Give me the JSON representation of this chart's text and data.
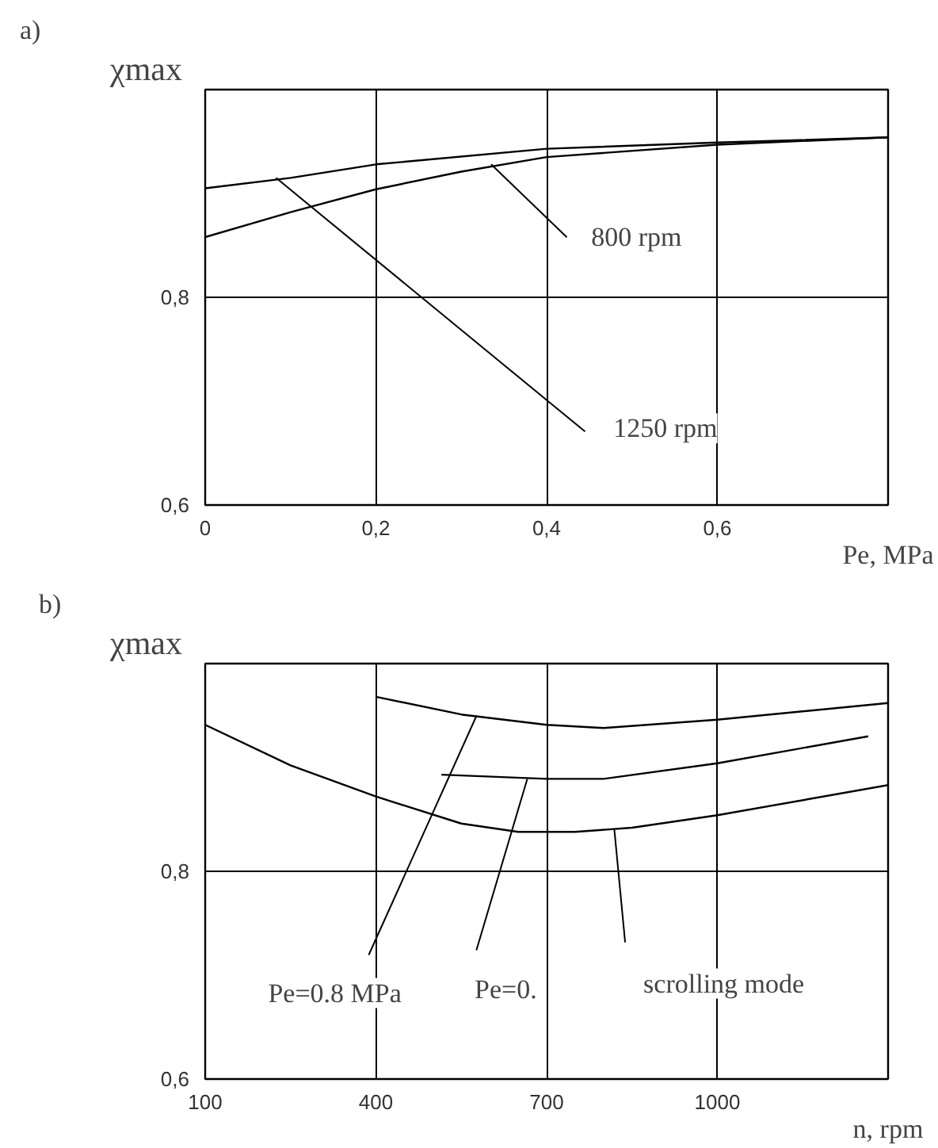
{
  "chart_data": [
    {
      "type": "line",
      "title": "a)",
      "ylabel": "χmax",
      "xlabel": "Pe, MPa",
      "xlim": [
        0,
        0.8
      ],
      "ylim": [
        0.6,
        1.0
      ],
      "xticks": [
        0,
        {
          "value": 0.2,
          "label": "0,2"
        },
        {
          "value": 0.4,
          "label": "0,4"
        },
        {
          "value": 0.6,
          "label": "0,6"
        }
      ],
      "yticks": [
        {
          "value": 0.6,
          "label": "0,6"
        },
        {
          "value": 0.8,
          "label": "0,8"
        },
        {
          "value": 1.0,
          "label": null
        }
      ],
      "grid": true,
      "series": [
        {
          "color": "#000000",
          "x": [
            0,
            0.1,
            0.2,
            0.3,
            0.4,
            0.6,
            0.8
          ],
          "values": [
            0.858,
            0.882,
            0.904,
            0.921,
            0.935,
            0.947,
            0.954
          ]
        },
        {
          "color": "#000000",
          "x": [
            0,
            0.1,
            0.2,
            0.4,
            0.6,
            0.8
          ],
          "values": [
            0.905,
            0.915,
            0.928,
            0.943,
            0.949,
            0.954
          ]
        }
      ],
      "annotations": [
        {
          "text": "800 rpm",
          "x": 0.335,
          "y": 0.928
        },
        {
          "text": "1250 rpm",
          "x": 0.083,
          "y": 0.915
        }
      ]
    },
    {
      "type": "line",
      "title": "b)",
      "ylabel": "χmax",
      "xlabel": "n, rpm",
      "xlim": [
        100,
        1300
      ],
      "ylim": [
        0.6,
        1.0
      ],
      "xticks": [
        100,
        400,
        700,
        1000
      ],
      "yticks": [
        {
          "value": 0.6,
          "label": "0,6"
        },
        {
          "value": 0.8,
          "label": "0,8"
        },
        {
          "value": 1.0,
          "label": null
        }
      ],
      "grid": true,
      "series": [
        {
          "color": "#000000",
          "x": [
            400,
            550,
            700,
            800,
            1000,
            1300
          ],
          "values": [
            0.968,
            0.951,
            0.941,
            0.938,
            0.946,
            0.962
          ]
        },
        {
          "color": "#000000",
          "x": [
            515,
            700,
            800,
            1000,
            1265
          ],
          "values": [
            0.893,
            0.889,
            0.889,
            0.904,
            0.93
          ]
        },
        {
          "color": "#000000",
          "x": [
            100,
            250,
            400,
            550,
            650,
            750,
            850,
            1000,
            1300
          ],
          "values": [
            0.941,
            0.902,
            0.872,
            0.846,
            0.838,
            0.838,
            0.842,
            0.854,
            0.883
          ]
        }
      ],
      "annotations": [
        {
          "text": "Pe=0.8 MPa",
          "x": 577,
          "y": 0.95
        },
        {
          "text": "Pe=0.",
          "x": 666,
          "y": 0.889
        },
        {
          "text": "scrolling mode",
          "x": 819,
          "y": 0.84
        }
      ]
    }
  ]
}
